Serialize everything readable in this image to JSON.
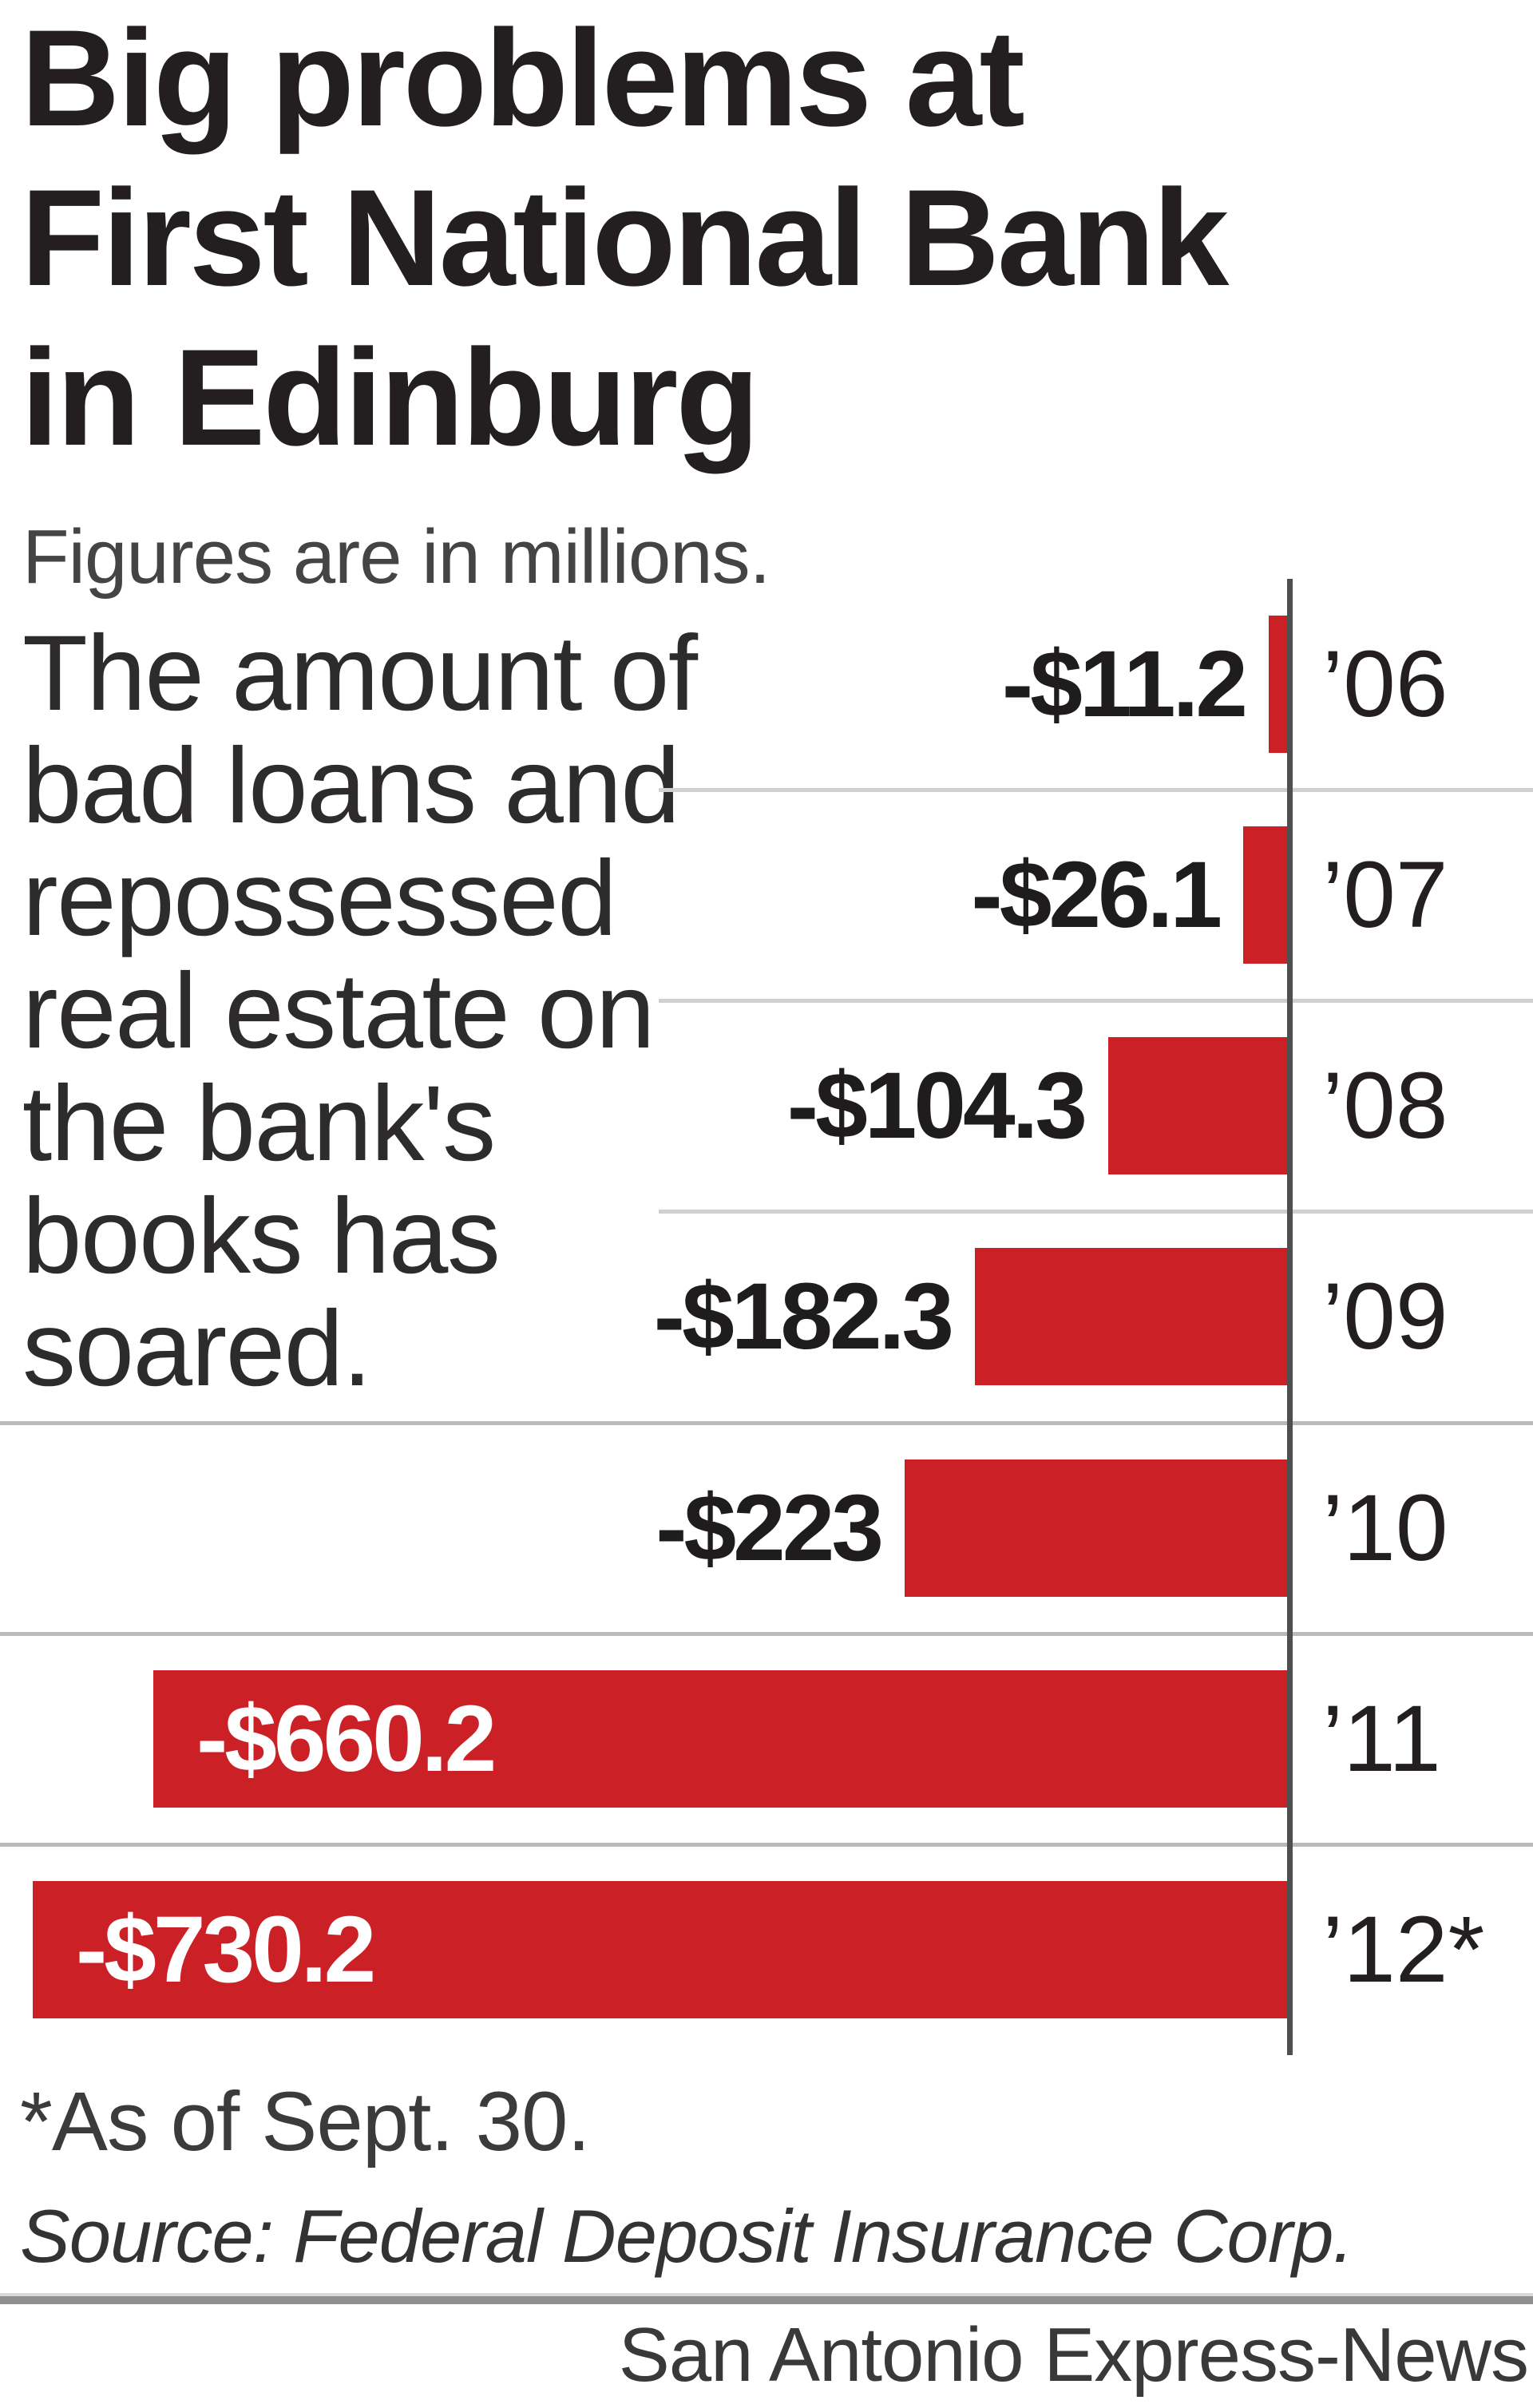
{
  "title": {
    "lines": [
      "Big problems at",
      "First National Bank",
      "in Edinburg"
    ]
  },
  "subtitle": "Figures are in millions.",
  "intro": {
    "lines": [
      "The amount of",
      "bad loans and",
      "repossessed",
      "real estate on",
      "the bank's",
      "books has",
      "soared."
    ]
  },
  "chart_data": {
    "type": "bar",
    "orientation": "horizontal",
    "unit": "$ millions",
    "categories": [
      "’06",
      "’07",
      "’08",
      "’09",
      "’10",
      "’11",
      "’12*"
    ],
    "values": [
      -11.2,
      -26.1,
      -104.3,
      -182.3,
      -223,
      -660.2,
      -730.2
    ],
    "bar_labels": [
      "-$11.2",
      "-$26.1",
      "-$104.3",
      "-$182.3",
      "-$223",
      "-$660.2",
      "-$730.2"
    ],
    "label_placement": [
      "outside",
      "outside",
      "outside",
      "outside",
      "outside",
      "inside",
      "inside"
    ],
    "xlim": [
      -760,
      0
    ],
    "baseline_at_zero": true,
    "grid": "horizontal row dividers",
    "legend": "none",
    "bar_color": "#cc2027",
    "axis_color": "#4e4f51"
  },
  "footnote": "*As of Sept. 30.",
  "source": "Source: Federal Deposit Insurance Corp.",
  "credit": "San Antonio Express-News",
  "colors": {
    "background": "#ffffff",
    "title_text": "#231f20",
    "body_text": "#2d2b2c",
    "bar_red": "#cc2027",
    "inside_label": "#ffffff",
    "axis_gray": "#4e4f51",
    "divider_light": "#cfd0d2",
    "divider_dark": "#b9babc",
    "rule_gray": "#8e9092"
  }
}
